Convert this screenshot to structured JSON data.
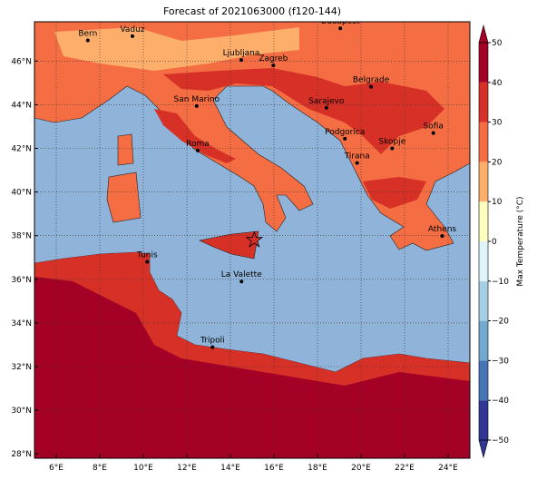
{
  "map": {
    "title": "Forecast of 2021063000 (f120-144)",
    "xlim": [
      5,
      25
    ],
    "ylim": [
      27.8,
      47.8
    ],
    "xticks": [
      {
        "value": 6,
        "label": "6°E"
      },
      {
        "value": 8,
        "label": "8°E"
      },
      {
        "value": 10,
        "label": "10°E"
      },
      {
        "value": 12,
        "label": "12°E"
      },
      {
        "value": 14,
        "label": "14°E"
      },
      {
        "value": 16,
        "label": "16°E"
      },
      {
        "value": 18,
        "label": "18°E"
      },
      {
        "value": 20,
        "label": "20°E"
      },
      {
        "value": 22,
        "label": "22°E"
      },
      {
        "value": 24,
        "label": "24°E"
      }
    ],
    "yticks": [
      {
        "value": 28,
        "label": "28°N"
      },
      {
        "value": 30,
        "label": "30°N"
      },
      {
        "value": 32,
        "label": "32°N"
      },
      {
        "value": 34,
        "label": "34°N"
      },
      {
        "value": 36,
        "label": "36°N"
      },
      {
        "value": 38,
        "label": "38°N"
      },
      {
        "value": 40,
        "label": "40°N"
      },
      {
        "value": 42,
        "label": "42°N"
      },
      {
        "value": 44,
        "label": "44°N"
      },
      {
        "value": 46,
        "label": "46°N"
      }
    ],
    "grid": true,
    "cities": [
      {
        "name": "Bern",
        "lon": 7.45,
        "lat": 46.95
      },
      {
        "name": "Vaduz",
        "lon": 9.5,
        "lat": 47.14
      },
      {
        "name": "Budapest",
        "lon": 19.05,
        "lat": 47.5
      },
      {
        "name": "Ljubljana",
        "lon": 14.5,
        "lat": 46.05
      },
      {
        "name": "Zagreb",
        "lon": 15.97,
        "lat": 45.8
      },
      {
        "name": "Belgrade",
        "lon": 20.46,
        "lat": 44.82
      },
      {
        "name": "San Marino",
        "lon": 12.45,
        "lat": 43.94
      },
      {
        "name": "Sarajevo",
        "lon": 18.41,
        "lat": 43.86
      },
      {
        "name": "Sofia",
        "lon": 23.32,
        "lat": 42.7
      },
      {
        "name": "Podgorica",
        "lon": 19.26,
        "lat": 42.44
      },
      {
        "name": "Skopje",
        "lon": 21.43,
        "lat": 42.0
      },
      {
        "name": "Roma",
        "lon": 12.5,
        "lat": 41.9
      },
      {
        "name": "Tirana",
        "lon": 19.82,
        "lat": 41.33
      },
      {
        "name": "Athens",
        "lon": 23.73,
        "lat": 37.98
      },
      {
        "name": "Tunis",
        "lon": 10.18,
        "lat": 36.8
      },
      {
        "name": "La Valette",
        "lon": 14.51,
        "lat": 35.9
      },
      {
        "name": "Tripoli",
        "lon": 13.18,
        "lat": 32.89
      }
    ],
    "star": {
      "lon": 15.1,
      "lat": 37.8
    },
    "colorbar": {
      "label": "Max Temperature (°C)",
      "ticks": [
        {
          "value": -50,
          "label": "−50"
        },
        {
          "value": -40,
          "label": "−40"
        },
        {
          "value": -30,
          "label": "−30"
        },
        {
          "value": -20,
          "label": "−20"
        },
        {
          "value": -10,
          "label": "−10"
        },
        0,
        10,
        20,
        30,
        40,
        50
      ],
      "colors": [
        "#313695",
        "#4575b4",
        "#74a9cf",
        "#a6cfe3",
        "#e0f3f8",
        "#ffffbf",
        "#fdae6b",
        "#f46d43",
        "#d73027",
        "#a50026"
      ]
    }
  }
}
